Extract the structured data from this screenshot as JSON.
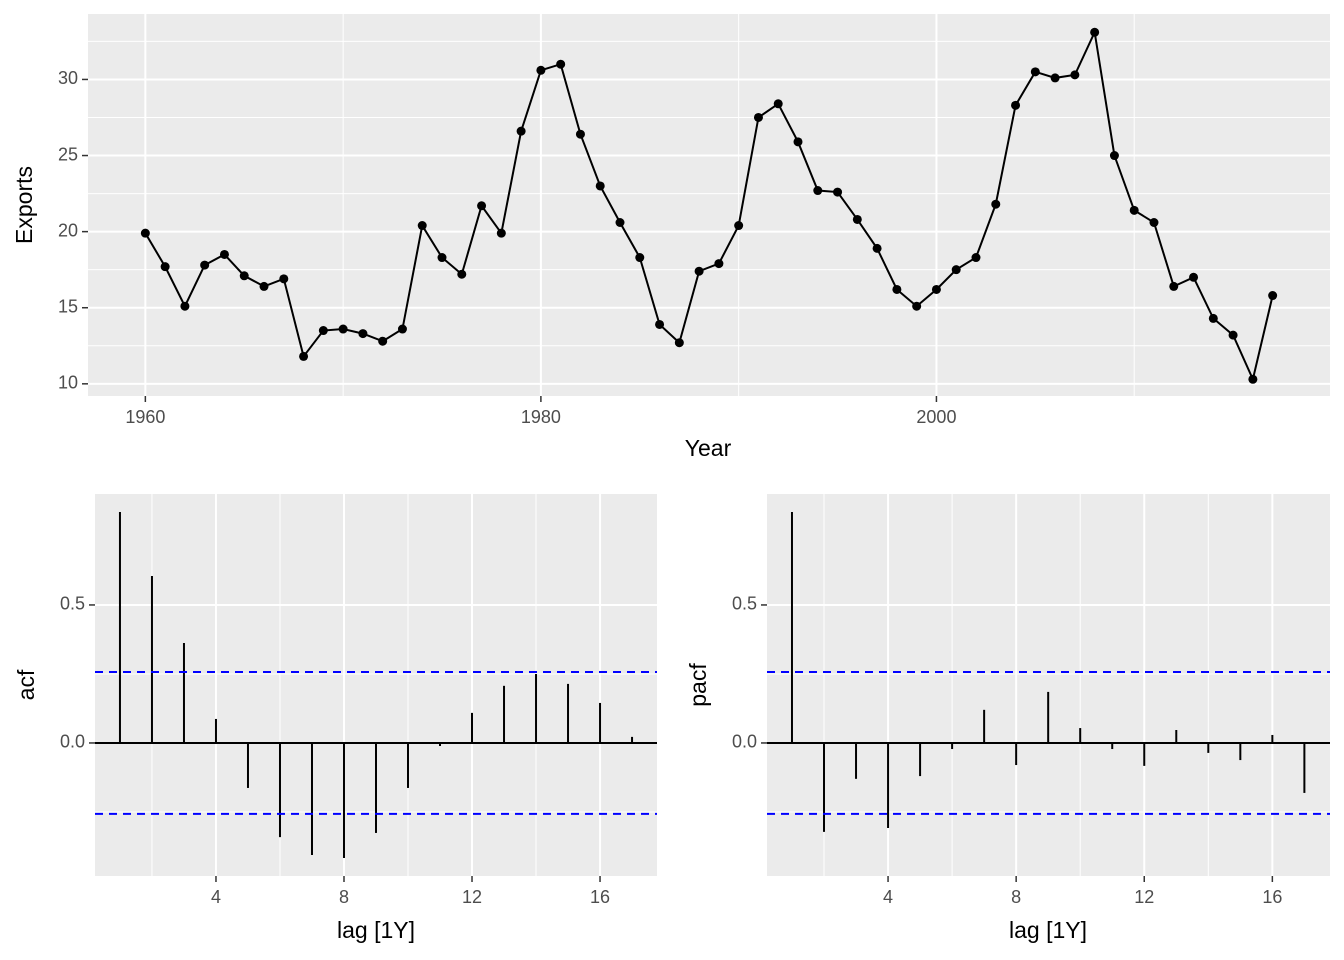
{
  "chart_data": [
    {
      "type": "line",
      "xlabel": "Year",
      "ylabel": "Exports",
      "color": "#000000",
      "x": [
        1960,
        1961,
        1962,
        1963,
        1964,
        1965,
        1966,
        1967,
        1968,
        1969,
        1970,
        1971,
        1972,
        1973,
        1974,
        1975,
        1976,
        1977,
        1978,
        1979,
        1980,
        1981,
        1982,
        1983,
        1984,
        1985,
        1986,
        1987,
        1988,
        1989,
        1990,
        1991,
        1992,
        1993,
        1994,
        1995,
        1996,
        1997,
        1998,
        1999,
        2000,
        2001,
        2002,
        2003,
        2004,
        2005,
        2006,
        2007,
        2008,
        2009,
        2010,
        2011,
        2012,
        2013,
        2014,
        2015,
        2016,
        2017
      ],
      "values": [
        19.9,
        17.7,
        15.1,
        17.8,
        18.5,
        17.1,
        16.4,
        16.9,
        11.8,
        13.5,
        13.6,
        13.3,
        12.8,
        13.6,
        20.4,
        18.3,
        17.2,
        21.7,
        19.9,
        26.6,
        30.6,
        31.0,
        26.4,
        23.0,
        20.6,
        18.3,
        13.9,
        12.7,
        17.4,
        17.9,
        20.4,
        27.5,
        28.4,
        25.9,
        22.7,
        22.6,
        20.8,
        18.9,
        16.2,
        15.1,
        16.2,
        17.5,
        18.3,
        21.8,
        28.3,
        30.5,
        30.1,
        30.3,
        33.1,
        25.0,
        21.4,
        20.6,
        16.4,
        17.0,
        14.3,
        13.2,
        10.3,
        15.8
      ],
      "xlim": [
        1957.1,
        2019.9
      ],
      "ylim": [
        9.2,
        34.3
      ],
      "xticks": [
        1960,
        1980,
        2000
      ],
      "yticks": [
        10,
        15,
        20,
        25,
        30
      ],
      "xminor": [
        1970,
        1990,
        2010
      ],
      "yminor": [
        12.5,
        17.5,
        22.5,
        27.5,
        32.5
      ]
    },
    {
      "type": "bar",
      "xlabel": "lag [1Y]",
      "ylabel": "acf",
      "color": "#000000",
      "x": [
        1,
        2,
        3,
        4,
        5,
        6,
        7,
        8,
        9,
        10,
        11,
        12,
        13,
        14,
        15,
        16,
        17
      ],
      "values": [
        0.837,
        0.605,
        0.362,
        0.087,
        -0.163,
        -0.341,
        -0.406,
        -0.417,
        -0.326,
        -0.163,
        -0.011,
        0.109,
        0.207,
        0.25,
        0.214,
        0.145,
        0.022
      ],
      "ci": [
        -0.257,
        0.257
      ],
      "ci_color": "#0000ff",
      "xlim": [
        0.22,
        17.78
      ],
      "ylim": [
        -0.482,
        0.902
      ],
      "xticks": [
        4,
        8,
        12,
        16
      ],
      "yticks": [
        {
          "value": 0,
          "label": "0.0"
        },
        0.5
      ],
      "xminor": [
        2,
        6,
        10,
        14
      ],
      "yminor": [
        -0.25,
        0.25
      ]
    },
    {
      "type": "bar",
      "xlabel": "lag [1Y]",
      "ylabel": "pacf",
      "color": "#000000",
      "x": [
        1,
        2,
        3,
        4,
        5,
        6,
        7,
        8,
        9,
        10,
        11,
        12,
        13,
        14,
        15,
        16,
        17
      ],
      "values": [
        0.837,
        -0.322,
        -0.13,
        -0.308,
        -0.12,
        -0.022,
        0.12,
        -0.08,
        0.185,
        0.054,
        -0.022,
        -0.083,
        0.047,
        -0.036,
        -0.062,
        0.029,
        -0.181
      ],
      "ci": [
        -0.257,
        0.257
      ],
      "ci_color": "#0000ff",
      "xlim": [
        0.22,
        17.8
      ],
      "ylim": [
        -0.482,
        0.902
      ],
      "xticks": [
        4,
        8,
        12,
        16
      ],
      "yticks": [
        {
          "value": 0,
          "label": "0.0"
        },
        0.5
      ],
      "xminor": [
        2,
        6,
        10,
        14
      ],
      "yminor": [
        -0.25,
        0.25
      ]
    }
  ]
}
